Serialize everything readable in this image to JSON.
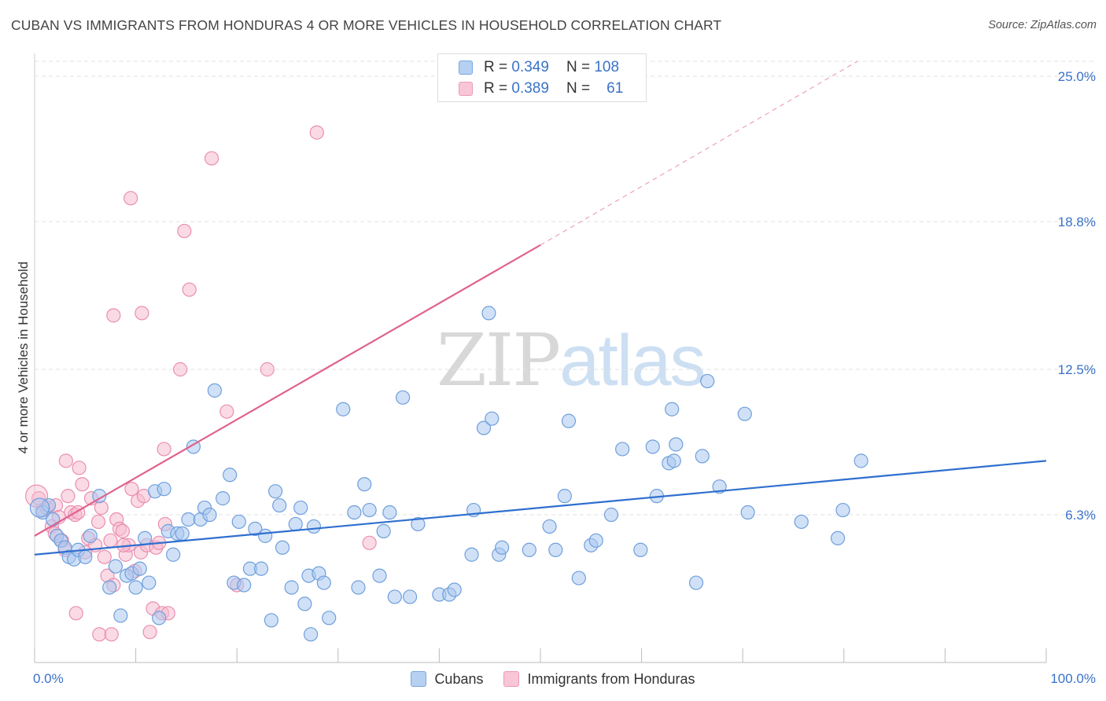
{
  "title": "CUBAN VS IMMIGRANTS FROM HONDURAS 4 OR MORE VEHICLES IN HOUSEHOLD CORRELATION CHART",
  "source": "Source: ZipAtlas.com",
  "watermark": {
    "zip": "ZIP",
    "atlas": "atlas"
  },
  "legend_stats": [
    {
      "r_label": "R =",
      "r_value": "0.349",
      "n_label": "N =",
      "n_value": "108"
    },
    {
      "r_label": "R =",
      "r_value": "0.389",
      "n_label": "N =",
      "n_value": "61"
    }
  ],
  "colors": {
    "blue_fill": "#a9c8f0",
    "blue_stroke": "#6f9fdc",
    "blue_line": "#2f6fcf",
    "pink_fill": "#f6bcd0",
    "pink_stroke": "#ea8fb0",
    "pink_line": "#e0628e",
    "tick_label": "#3a72c8",
    "grid": "#e2e2e2"
  },
  "chart_data": {
    "type": "scatter",
    "title": "CUBAN VS IMMIGRANTS FROM HONDURAS 4 OR MORE VEHICLES IN HOUSEHOLD CORRELATION CHART",
    "xlabel": "",
    "ylabel": "4 or more Vehicles in Household",
    "xlim": [
      0,
      100
    ],
    "ylim": [
      0,
      26.2
    ],
    "x_tick_labels": [
      {
        "value": 0,
        "label": "0.0%"
      },
      {
        "value": 100,
        "label": "100.0%"
      }
    ],
    "y_tick_labels": [
      {
        "value": 6.3,
        "label": "6.3%"
      },
      {
        "value": 12.5,
        "label": "12.5%"
      },
      {
        "value": 18.8,
        "label": "18.8%"
      },
      {
        "value": 25.0,
        "label": "25.0%"
      }
    ],
    "legend_position": "bottom-center",
    "grid": true,
    "series": [
      {
        "name": "Cubans",
        "color": "#a9c8f0",
        "trendline": {
          "x0": 0,
          "y0": 4.6,
          "x1": 100,
          "y1": 8.6
        },
        "points": [
          [
            0.8,
            6.4
          ],
          [
            1.4,
            6.7
          ],
          [
            1.8,
            6.1
          ],
          [
            2.2,
            5.4
          ],
          [
            2.6,
            5.2
          ],
          [
            3.0,
            4.9
          ],
          [
            3.4,
            4.5
          ],
          [
            3.9,
            4.4
          ],
          [
            4.3,
            4.8
          ],
          [
            5.0,
            4.5
          ],
          [
            5.5,
            5.4
          ],
          [
            6.4,
            7.1
          ],
          [
            7.4,
            3.2
          ],
          [
            8.0,
            4.1
          ],
          [
            8.5,
            2.0
          ],
          [
            9.1,
            3.7
          ],
          [
            9.6,
            3.8
          ],
          [
            10.0,
            3.2
          ],
          [
            10.4,
            4.0
          ],
          [
            10.9,
            5.3
          ],
          [
            11.3,
            3.4
          ],
          [
            11.9,
            7.3
          ],
          [
            12.3,
            1.9
          ],
          [
            12.8,
            7.4
          ],
          [
            13.2,
            5.6
          ],
          [
            13.7,
            4.6
          ],
          [
            14.1,
            5.5
          ],
          [
            14.6,
            5.5
          ],
          [
            15.2,
            6.1
          ],
          [
            15.7,
            9.2
          ],
          [
            16.4,
            6.1
          ],
          [
            16.8,
            6.6
          ],
          [
            17.3,
            6.3
          ],
          [
            17.8,
            11.6
          ],
          [
            18.6,
            7.0
          ],
          [
            19.3,
            8.0
          ],
          [
            19.7,
            3.4
          ],
          [
            20.2,
            6.0
          ],
          [
            20.7,
            3.3
          ],
          [
            21.3,
            4.0
          ],
          [
            21.8,
            5.7
          ],
          [
            22.4,
            4.0
          ],
          [
            22.8,
            5.4
          ],
          [
            23.4,
            1.8
          ],
          [
            23.8,
            7.3
          ],
          [
            24.2,
            6.7
          ],
          [
            24.5,
            4.9
          ],
          [
            25.4,
            3.2
          ],
          [
            25.8,
            5.9
          ],
          [
            26.3,
            6.6
          ],
          [
            26.7,
            2.5
          ],
          [
            27.1,
            3.7
          ],
          [
            27.6,
            5.8
          ],
          [
            27.3,
            1.2
          ],
          [
            28.1,
            3.8
          ],
          [
            28.6,
            3.4
          ],
          [
            29.1,
            1.9
          ],
          [
            30.5,
            10.8
          ],
          [
            31.6,
            6.4
          ],
          [
            32.0,
            3.2
          ],
          [
            32.6,
            7.6
          ],
          [
            33.1,
            6.5
          ],
          [
            34.1,
            3.7
          ],
          [
            34.5,
            5.6
          ],
          [
            35.1,
            6.4
          ],
          [
            35.6,
            2.8
          ],
          [
            36.4,
            11.3
          ],
          [
            37.1,
            2.8
          ],
          [
            37.9,
            5.9
          ],
          [
            40.0,
            2.9
          ],
          [
            41.0,
            2.9
          ],
          [
            41.5,
            3.1
          ],
          [
            43.4,
            6.5
          ],
          [
            44.4,
            10.0
          ],
          [
            45.2,
            10.4
          ],
          [
            44.9,
            14.9
          ],
          [
            43.2,
            4.6
          ],
          [
            45.9,
            4.6
          ],
          [
            46.2,
            4.9
          ],
          [
            48.9,
            4.8
          ],
          [
            50.9,
            5.8
          ],
          [
            51.5,
            4.8
          ],
          [
            52.4,
            7.1
          ],
          [
            52.8,
            10.3
          ],
          [
            53.8,
            3.6
          ],
          [
            55.0,
            5.0
          ],
          [
            55.5,
            5.2
          ],
          [
            57.0,
            6.3
          ],
          [
            58.1,
            9.1
          ],
          [
            59.9,
            4.8
          ],
          [
            61.1,
            9.2
          ],
          [
            61.5,
            7.1
          ],
          [
            62.7,
            8.5
          ],
          [
            63.2,
            8.6
          ],
          [
            63.4,
            9.3
          ],
          [
            63.0,
            10.8
          ],
          [
            65.4,
            3.4
          ],
          [
            66.0,
            8.8
          ],
          [
            66.5,
            12.0
          ],
          [
            67.7,
            7.5
          ],
          [
            70.5,
            6.4
          ],
          [
            70.2,
            10.6
          ],
          [
            75.8,
            6.0
          ],
          [
            79.4,
            5.3
          ],
          [
            79.9,
            6.5
          ],
          [
            81.7,
            8.6
          ]
        ]
      },
      {
        "name": "Immigrants from Honduras",
        "color": "#f6bcd0",
        "trendline": {
          "x0": 0,
          "y0": 5.4,
          "x1": 50,
          "y1": 17.8,
          "dash_to": {
            "x": 100,
            "y": 30.3
          }
        },
        "points": [
          [
            0.4,
            7.0
          ],
          [
            0.8,
            6.5
          ],
          [
            1.2,
            6.6
          ],
          [
            1.7,
            5.8
          ],
          [
            2.1,
            6.7
          ],
          [
            2.4,
            6.2
          ],
          [
            2.7,
            5.2
          ],
          [
            3.0,
            4.8
          ],
          [
            3.3,
            7.1
          ],
          [
            3.6,
            6.4
          ],
          [
            3.1,
            8.6
          ],
          [
            4.0,
            6.3
          ],
          [
            4.3,
            6.4
          ],
          [
            4.7,
            7.6
          ],
          [
            5.0,
            4.7
          ],
          [
            5.3,
            5.3
          ],
          [
            5.6,
            7.0
          ],
          [
            4.4,
            8.3
          ],
          [
            6.0,
            5.0
          ],
          [
            6.3,
            6.0
          ],
          [
            6.6,
            6.6
          ],
          [
            6.9,
            4.5
          ],
          [
            7.2,
            3.7
          ],
          [
            7.5,
            5.2
          ],
          [
            7.8,
            3.3
          ],
          [
            8.1,
            6.1
          ],
          [
            8.4,
            5.7
          ],
          [
            8.7,
            5.6
          ],
          [
            9.0,
            4.6
          ],
          [
            9.3,
            5.0
          ],
          [
            9.6,
            7.4
          ],
          [
            9.9,
            3.9
          ],
          [
            10.2,
            6.9
          ],
          [
            10.5,
            4.7
          ],
          [
            10.8,
            7.1
          ],
          [
            11.1,
            5.0
          ],
          [
            11.4,
            1.3
          ],
          [
            11.7,
            2.3
          ],
          [
            12.0,
            4.9
          ],
          [
            12.3,
            5.1
          ],
          [
            12.6,
            2.1
          ],
          [
            12.9,
            5.9
          ],
          [
            13.2,
            2.1
          ],
          [
            7.8,
            14.8
          ],
          [
            9.5,
            19.8
          ],
          [
            10.6,
            14.9
          ],
          [
            12.8,
            9.1
          ],
          [
            14.4,
            12.5
          ],
          [
            14.8,
            18.4
          ],
          [
            15.3,
            15.9
          ],
          [
            17.5,
            21.5
          ],
          [
            19.0,
            10.7
          ],
          [
            20.0,
            3.3
          ],
          [
            23.0,
            12.5
          ],
          [
            27.9,
            22.6
          ],
          [
            33.1,
            5.1
          ],
          [
            4.1,
            2.1
          ],
          [
            6.4,
            1.2
          ],
          [
            7.6,
            1.2
          ],
          [
            2.0,
            5.5
          ],
          [
            8.8,
            5.0
          ]
        ]
      }
    ]
  }
}
